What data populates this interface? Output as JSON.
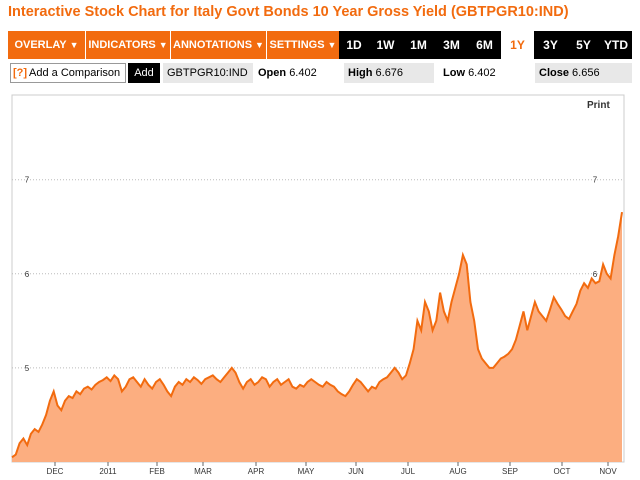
{
  "title": "Interactive Stock Chart for Italy Govt Bonds 10 Year Gross Yield (GBTPGR10:IND)",
  "toolbar": {
    "menus": [
      "OVERLAY",
      "INDICATORS",
      "ANNOTATIONS",
      "SETTINGS"
    ],
    "ranges": [
      "1D",
      "1W",
      "1M",
      "3M",
      "6M",
      "1Y",
      "3Y",
      "5Y",
      "YTD"
    ],
    "active_range": "1Y"
  },
  "info": {
    "compare_help": "[?]",
    "compare_label": "Add a Comparison",
    "add_label": "Add",
    "ticker": "GBTPGR10:IND",
    "open_label": "Open",
    "open_value": "6.402",
    "high_label": "High",
    "high_value": "6.676",
    "low_label": "Low",
    "low_value": "6.402",
    "close_label": "Close",
    "close_value": "6.656"
  },
  "print_label": "Print",
  "colors": {
    "accent": "#f26b0f",
    "area_fill": "#fcae80",
    "line": "#f26b0f",
    "toolbar_bg": "#000000"
  },
  "chart_data": {
    "type": "area",
    "title": "",
    "xlabel": "",
    "ylabel": "",
    "x_tick_labels": [
      "DEC",
      "2011",
      "FEB",
      "MAR",
      "APR",
      "MAY",
      "JUN",
      "JUL",
      "AUG",
      "SEP",
      "OCT",
      "NOV"
    ],
    "y_tick_labels": [
      "5",
      "6",
      "7"
    ],
    "ylim": [
      4.0,
      7.9
    ],
    "grid": true,
    "series": [
      {
        "values": [
          4.05,
          4.08,
          4.2,
          4.25,
          4.18,
          4.3,
          4.35,
          4.32,
          4.4,
          4.5,
          4.65,
          4.75,
          4.6,
          4.55,
          4.65,
          4.7,
          4.68,
          4.75,
          4.72,
          4.78,
          4.8,
          4.77,
          4.82,
          4.85,
          4.87,
          4.9,
          4.86,
          4.92,
          4.88,
          4.75,
          4.8,
          4.88,
          4.9,
          4.85,
          4.8,
          4.88,
          4.82,
          4.78,
          4.85,
          4.88,
          4.82,
          4.75,
          4.7,
          4.8,
          4.85,
          4.82,
          4.88,
          4.85,
          4.9,
          4.87,
          4.83,
          4.88,
          4.9,
          4.92,
          4.88,
          4.85,
          4.9,
          4.95,
          5.0,
          4.95,
          4.85,
          4.78,
          4.85,
          4.88,
          4.82,
          4.85,
          4.9,
          4.88,
          4.8,
          4.85,
          4.88,
          4.82,
          4.85,
          4.88,
          4.8,
          4.78,
          4.82,
          4.8,
          4.85,
          4.88,
          4.85,
          4.82,
          4.8,
          4.85,
          4.82,
          4.8,
          4.75,
          4.72,
          4.7,
          4.75,
          4.82,
          4.88,
          4.85,
          4.8,
          4.75,
          4.8,
          4.78,
          4.85,
          4.88,
          4.9,
          4.95,
          5.0,
          4.95,
          4.88,
          4.92,
          5.05,
          5.2,
          5.5,
          5.4,
          5.7,
          5.6,
          5.4,
          5.5,
          5.8,
          5.6,
          5.5,
          5.7,
          5.85,
          6.0,
          6.2,
          6.1,
          5.7,
          5.5,
          5.2,
          5.1,
          5.05,
          5.0,
          5.0,
          5.05,
          5.1,
          5.12,
          5.15,
          5.2,
          5.3,
          5.45,
          5.6,
          5.4,
          5.55,
          5.7,
          5.6,
          5.55,
          5.5,
          5.62,
          5.75,
          5.68,
          5.62,
          5.55,
          5.52,
          5.6,
          5.68,
          5.82,
          5.9,
          5.85,
          5.95,
          5.9,
          5.92,
          6.1,
          6.0,
          5.95,
          6.2,
          6.4,
          6.656
        ]
      }
    ]
  }
}
